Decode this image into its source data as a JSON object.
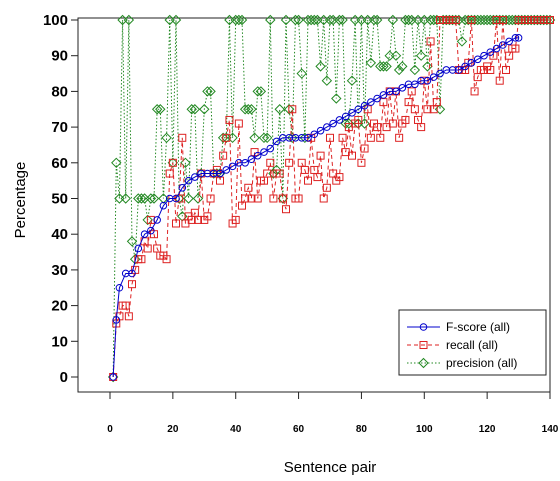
{
  "chart_data": {
    "type": "line",
    "title": "",
    "xlabel": "Sentence pair",
    "ylabel": "Percentage",
    "xlim": [
      -2,
      140
    ],
    "ylim": [
      0,
      100
    ],
    "xticks": [
      0,
      20,
      40,
      60,
      80,
      100,
      120,
      140
    ],
    "yticks": [
      0,
      10,
      20,
      30,
      40,
      50,
      60,
      70,
      80,
      90,
      100
    ],
    "legend_position": "bottom-right",
    "series": [
      {
        "name": "F-score (all)",
        "color": "#0000cc",
        "marker": "circle",
        "line": "solid",
        "x": [
          1,
          2,
          3,
          5,
          7,
          9,
          11,
          13,
          15,
          17,
          19,
          21,
          23,
          25,
          27,
          29,
          31,
          33,
          35,
          37,
          39,
          41,
          43,
          45,
          47,
          49,
          51,
          53,
          55,
          57,
          59,
          61,
          63,
          65,
          67,
          69,
          71,
          73,
          75,
          77,
          79,
          81,
          83,
          85,
          87,
          89,
          91,
          93,
          95,
          97,
          99,
          101,
          103,
          105,
          107,
          109,
          111,
          113,
          115,
          117,
          119,
          121,
          123,
          125,
          127,
          129,
          130
        ],
        "y": [
          0,
          16,
          25,
          29,
          29,
          36,
          40,
          41,
          44,
          48,
          50,
          50,
          53,
          55,
          56,
          57,
          57,
          57,
          57,
          58,
          59,
          60,
          60,
          61,
          62,
          63,
          64,
          66,
          67,
          67,
          67,
          67,
          67,
          68,
          69,
          70,
          71,
          72,
          73,
          74,
          75,
          76,
          77,
          78,
          79,
          80,
          80,
          81,
          82,
          82,
          83,
          83,
          84,
          85,
          86,
          86,
          86,
          87,
          88,
          89,
          90,
          91,
          92,
          93,
          94,
          95,
          95
        ]
      },
      {
        "name": "recall (all)",
        "color": "#dd2222",
        "marker": "square",
        "line": "dashed",
        "x": [
          1,
          2,
          3,
          4,
          5,
          6,
          7,
          8,
          9,
          10,
          11,
          12,
          13,
          14,
          15,
          16,
          17,
          18,
          19,
          20,
          21,
          22,
          23,
          24,
          25,
          26,
          27,
          28,
          29,
          30,
          31,
          32,
          33,
          34,
          35,
          36,
          37,
          38,
          39,
          40,
          41,
          42,
          43,
          44,
          45,
          46,
          47,
          48,
          49,
          50,
          51,
          52,
          53,
          54,
          55,
          56,
          57,
          58,
          59,
          60,
          61,
          62,
          63,
          64,
          65,
          66,
          67,
          68,
          69,
          70,
          71,
          72,
          73,
          74,
          75,
          76,
          77,
          78,
          79,
          80,
          81,
          82,
          83,
          84,
          85,
          86,
          87,
          88,
          89,
          90,
          91,
          92,
          93,
          94,
          95,
          96,
          97,
          98,
          99,
          100,
          101,
          102,
          103,
          104,
          105,
          106,
          107,
          108,
          109,
          110,
          111,
          112,
          113,
          114,
          115,
          116,
          117,
          118,
          119,
          120,
          121,
          122,
          123,
          124,
          125,
          126,
          127,
          128,
          129,
          130,
          131,
          132,
          133,
          134,
          135,
          136,
          137,
          138,
          139,
          140
        ],
        "y": [
          0,
          15,
          17,
          20,
          20,
          17,
          26,
          30,
          33,
          33,
          38,
          36,
          44,
          40,
          36,
          34,
          34,
          33,
          57,
          60,
          43,
          50,
          67,
          43,
          45,
          44,
          46,
          44,
          57,
          44,
          45,
          50,
          57,
          58,
          55,
          62,
          67,
          72,
          43,
          44,
          71,
          48,
          50,
          53,
          50,
          63,
          50,
          55,
          55,
          57,
          60,
          50,
          57,
          57,
          50,
          47,
          60,
          75,
          50,
          50,
          60,
          58,
          55,
          67,
          58,
          56,
          62,
          50,
          53,
          67,
          57,
          55,
          56,
          67,
          63,
          70,
          62,
          71,
          72,
          60,
          64,
          75,
          67,
          71,
          70,
          67,
          77,
          70,
          80,
          71,
          80,
          67,
          71,
          72,
          77,
          80,
          75,
          72,
          70,
          83,
          75,
          94,
          75,
          77,
          100,
          100,
          100,
          100,
          100,
          100,
          86,
          86,
          86,
          88,
          100,
          80,
          84,
          86,
          86,
          87,
          86,
          90,
          100,
          83,
          100,
          86,
          90,
          92,
          92,
          100,
          100,
          100,
          100,
          100,
          100,
          100,
          100,
          100,
          100,
          100
        ]
      },
      {
        "name": "precision (all)",
        "color": "#228822",
        "marker": "diamond",
        "line": "dotted",
        "x": [
          1,
          2,
          3,
          4,
          5,
          6,
          7,
          8,
          9,
          10,
          11,
          12,
          13,
          14,
          15,
          16,
          17,
          18,
          19,
          20,
          21,
          22,
          23,
          24,
          25,
          26,
          27,
          28,
          29,
          30,
          31,
          32,
          33,
          34,
          35,
          36,
          37,
          38,
          39,
          40,
          41,
          42,
          43,
          44,
          45,
          46,
          47,
          48,
          49,
          50,
          51,
          52,
          53,
          54,
          55,
          56,
          57,
          58,
          59,
          60,
          61,
          62,
          63,
          64,
          65,
          66,
          67,
          68,
          69,
          70,
          71,
          72,
          73,
          74,
          75,
          76,
          77,
          78,
          79,
          80,
          81,
          82,
          83,
          84,
          85,
          86,
          87,
          88,
          89,
          90,
          91,
          92,
          93,
          94,
          95,
          96,
          97,
          98,
          99,
          100,
          101,
          102,
          103,
          104,
          105,
          106,
          107,
          108,
          109,
          110,
          111,
          112,
          113,
          114,
          115,
          116,
          117,
          118,
          119,
          120,
          121,
          122,
          123,
          124,
          125,
          126,
          127,
          128,
          129,
          130,
          131,
          132,
          133,
          134,
          135,
          136,
          137,
          138,
          139,
          140
        ],
        "y": [
          0,
          60,
          50,
          100,
          50,
          100,
          38,
          33,
          50,
          50,
          50,
          44,
          50,
          50,
          75,
          75,
          50,
          67,
          100,
          60,
          100,
          50,
          45,
          60,
          50,
          75,
          75,
          50,
          57,
          75,
          80,
          80,
          57,
          57,
          57,
          67,
          67,
          100,
          67,
          100,
          100,
          100,
          75,
          75,
          75,
          67,
          80,
          80,
          67,
          67,
          100,
          57,
          58,
          75,
          50,
          100,
          75,
          67,
          100,
          100,
          85,
          67,
          100,
          100,
          100,
          100,
          87,
          100,
          83,
          100,
          100,
          78,
          100,
          100,
          71,
          71,
          83,
          100,
          71,
          100,
          71,
          100,
          88,
          100,
          100,
          87,
          87,
          87,
          90,
          100,
          90,
          86,
          87,
          100,
          100,
          100,
          86,
          100,
          90,
          100,
          87,
          100,
          100,
          100,
          75,
          100,
          100,
          100,
          100,
          100,
          100,
          94,
          100,
          100,
          100,
          100,
          100,
          100,
          100,
          100,
          100,
          100,
          100,
          100,
          100,
          100,
          100,
          100,
          100,
          100,
          100,
          100,
          100,
          100,
          100,
          100,
          100,
          100,
          100,
          100
        ]
      }
    ]
  }
}
